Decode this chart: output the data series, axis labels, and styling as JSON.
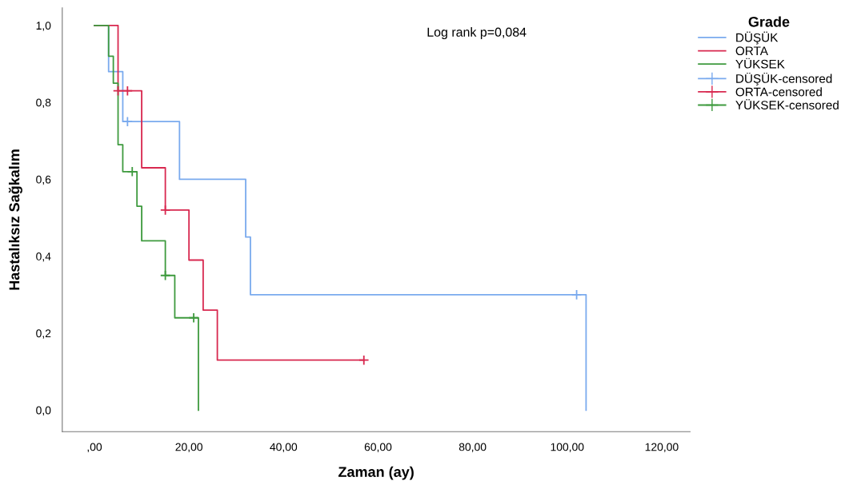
{
  "chart_data": {
    "type": "step",
    "xlabel": "Zaman (ay)",
    "ylabel": "Hastalıksız Sağkalım",
    "legend_title": "Grade",
    "legend": "right",
    "grid": false,
    "annotations": [
      "Log rank p=0,084"
    ],
    "xlim": [
      -6.8,
      126
    ],
    "ylim": [
      -0.056,
      1.046
    ],
    "xticks": [
      {
        "value": 0,
        "label": ",00"
      },
      {
        "value": 20,
        "label": "20,00"
      },
      {
        "value": 40,
        "label": "40,00"
      },
      {
        "value": 60,
        "label": "60,00"
      },
      {
        "value": 80,
        "label": "80,00"
      },
      {
        "value": 100,
        "label": "100,00"
      },
      {
        "value": 120,
        "label": "120,00"
      }
    ],
    "yticks": [
      {
        "value": 0,
        "label": "0,0"
      },
      {
        "value": 0.2,
        "label": "0,2"
      },
      {
        "value": 0.4,
        "label": "0,4"
      },
      {
        "value": 0.6,
        "label": "0,6"
      },
      {
        "value": 0.8,
        "label": "0,8"
      },
      {
        "value": 1,
        "label": "1,0"
      }
    ],
    "series": [
      {
        "name": "DÜŞÜK",
        "color": "#7aaaee",
        "x": [
          0,
          3,
          6,
          18,
          32,
          33,
          104
        ],
        "values": [
          1,
          0.88,
          0.75,
          0.6,
          0.45,
          0.3,
          0
        ]
      },
      {
        "name": "ORTA",
        "color": "#d8284f",
        "x": [
          0,
          5,
          10,
          15,
          20,
          23,
          26,
          57
        ],
        "values": [
          1,
          0.83,
          0.63,
          0.52,
          0.39,
          0.26,
          0.13,
          0.13
        ]
      },
      {
        "name": "YÜKSEK",
        "color": "#3e9a3e",
        "x": [
          0,
          3,
          4,
          5,
          6,
          9,
          10,
          15,
          17,
          22
        ],
        "values": [
          1,
          0.92,
          0.85,
          0.69,
          0.62,
          0.53,
          0.44,
          0.35,
          0.24,
          0
        ]
      },
      {
        "name": "DÜŞÜK-censored",
        "type": "scatter",
        "marker": "cross",
        "color": "#7aaaee",
        "x": [
          7,
          102
        ],
        "values": [
          0.75,
          0.3
        ]
      },
      {
        "name": "ORTA-censored",
        "type": "scatter",
        "marker": "cross",
        "color": "#d8284f",
        "x": [
          5,
          7,
          15,
          57
        ],
        "values": [
          0.83,
          0.83,
          0.52,
          0.13
        ]
      },
      {
        "name": "YÜKSEK-censored",
        "type": "scatter",
        "marker": "cross",
        "color": "#3e9a3e",
        "x": [
          8,
          15,
          21
        ],
        "values": [
          0.62,
          0.35,
          0.24
        ]
      }
    ]
  }
}
